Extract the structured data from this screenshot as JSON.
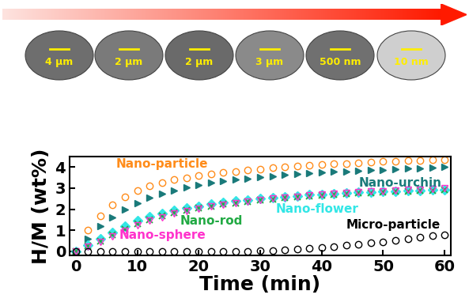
{
  "chart_data": {
    "type": "scatter",
    "x_label": "Time (min)",
    "y_label": "H/M (wt%)",
    "annotations": [
      "4 μm",
      "2 μm",
      "2 μm",
      "3 μm",
      "500 nm",
      "10 nm"
    ],
    "x": [
      0,
      2,
      4,
      6,
      8,
      10,
      12,
      14,
      16,
      18,
      20,
      22,
      24,
      26,
      28,
      30,
      32,
      34,
      36,
      38,
      40,
      42,
      44,
      46,
      48,
      50,
      52,
      54,
      56,
      58,
      60
    ],
    "series": [
      {
        "name": "Nano-particle",
        "color": "#ff8c1a",
        "marker": "circle_open",
        "line_style": "none",
        "values": [
          0,
          1.0,
          1.7,
          2.2,
          2.6,
          2.9,
          3.1,
          3.25,
          3.4,
          3.5,
          3.6,
          3.67,
          3.74,
          3.8,
          3.86,
          3.91,
          3.96,
          4.0,
          4.04,
          4.08,
          4.12,
          4.15,
          4.18,
          4.21,
          4.24,
          4.26,
          4.28,
          4.3,
          4.32,
          4.34,
          4.36
        ]
      },
      {
        "name": "Nano-urchin",
        "color": "#1a7a7a",
        "marker": "triangle_right",
        "line_style": "none",
        "values": [
          0,
          0.6,
          1.2,
          1.6,
          2.0,
          2.3,
          2.55,
          2.75,
          2.9,
          3.05,
          3.15,
          3.25,
          3.33,
          3.4,
          3.46,
          3.52,
          3.57,
          3.62,
          3.66,
          3.7,
          3.74,
          3.77,
          3.8,
          3.83,
          3.86,
          3.88,
          3.91,
          3.93,
          3.95,
          3.97,
          4.0
        ]
      },
      {
        "name": "Nano-flower",
        "color": "#33e6e6",
        "marker": "diamond",
        "line_style": "none",
        "values": [
          0,
          0.3,
          0.6,
          0.9,
          1.2,
          1.45,
          1.65,
          1.8,
          1.95,
          2.05,
          2.15,
          2.25,
          2.32,
          2.4,
          2.45,
          2.5,
          2.55,
          2.6,
          2.64,
          2.68,
          2.71,
          2.74,
          2.77,
          2.8,
          2.82,
          2.84,
          2.86,
          2.88,
          2.9,
          2.92,
          2.94
        ]
      },
      {
        "name": "Nano-rod",
        "color": "#22aa44",
        "marker": "x",
        "line_style": "none",
        "values": [
          0,
          0.25,
          0.5,
          0.8,
          1.05,
          1.3,
          1.5,
          1.68,
          1.82,
          1.95,
          2.05,
          2.15,
          2.23,
          2.3,
          2.37,
          2.43,
          2.48,
          2.53,
          2.58,
          2.62,
          2.66,
          2.7,
          2.73,
          2.76,
          2.79,
          2.82,
          2.84,
          2.86,
          2.88,
          2.9,
          2.92
        ]
      },
      {
        "name": "Nano-sphere",
        "color": "#ff33cc",
        "marker": "triangle_down_open",
        "line_style": "none",
        "values": [
          0,
          0.2,
          0.45,
          0.72,
          0.98,
          1.22,
          1.44,
          1.62,
          1.78,
          1.92,
          2.03,
          2.13,
          2.22,
          2.3,
          2.37,
          2.44,
          2.5,
          2.55,
          2.6,
          2.65,
          2.69,
          2.73,
          2.77,
          2.8,
          2.83,
          2.86,
          2.89,
          2.92,
          2.94,
          2.97,
          2.99
        ]
      },
      {
        "name": "Micro-particle",
        "color": "#000000",
        "marker": "circle_open",
        "line_style": "none",
        "values": [
          0,
          0,
          0,
          0,
          0,
          0,
          0,
          0,
          0,
          0,
          0,
          0,
          0,
          0,
          0,
          0.02,
          0.04,
          0.07,
          0.1,
          0.14,
          0.18,
          0.23,
          0.28,
          0.34,
          0.4,
          0.46,
          0.53,
          0.6,
          0.67,
          0.73,
          0.8
        ]
      }
    ],
    "xlim": [
      -1,
      61
    ],
    "ylim": [
      -0.2,
      4.5
    ],
    "xticks": [
      0,
      10,
      20,
      30,
      40,
      50,
      60
    ],
    "yticks": [
      0,
      1,
      2,
      3,
      4
    ],
    "grid": false
  }
}
